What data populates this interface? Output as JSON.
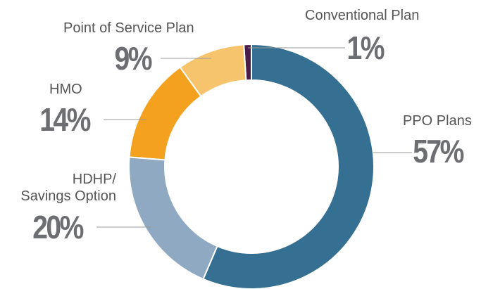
{
  "chart_data": {
    "type": "pie",
    "categories": [
      "PPO Plans",
      "HDHP/\nSavings Option",
      "HMO",
      "Point of Service Plan",
      "Conventional Plan"
    ],
    "values": [
      57,
      20,
      14,
      9,
      1
    ],
    "value_labels": [
      "57%",
      "20%",
      "14%",
      "9%",
      "1%"
    ],
    "colors": [
      "#356f91",
      "#8ea9c1",
      "#f3a11e",
      "#f7c46e",
      "#4a1c4a"
    ],
    "donut": true
  }
}
